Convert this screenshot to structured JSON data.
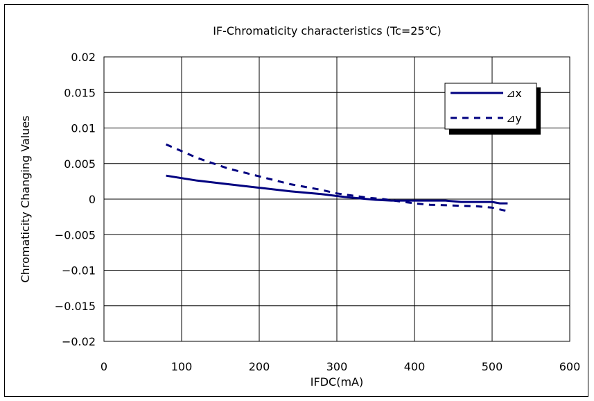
{
  "chart_data": {
    "type": "line",
    "title": "IF-Chromaticity characteristics (Tc=25℃)",
    "xlabel": "IFDC(mA)",
    "ylabel": "Chromaticity Changing Values",
    "xlim": [
      0,
      600
    ],
    "ylim": [
      -0.02,
      0.02
    ],
    "x_ticks": [
      "0",
      "100",
      "200",
      "300",
      "400",
      "500",
      "600"
    ],
    "y_ticks": [
      "0.02",
      "0.015",
      "0.01",
      "0.005",
      "0",
      "−0.005",
      "−0.01",
      "−0.015",
      "−0.02"
    ],
    "grid": true,
    "legend_position": "top-right",
    "series": [
      {
        "name": "⊿x",
        "style": "solid",
        "color": "#000080",
        "x": [
          80,
          120,
          160,
          200,
          240,
          280,
          310,
          330,
          350,
          370,
          400,
          440,
          460,
          480,
          500,
          510,
          520
        ],
        "y": [
          0.0033,
          0.0026,
          0.0021,
          0.0016,
          0.0011,
          0.0007,
          0.0003,
          0.0001,
          -0.0001,
          -0.0002,
          -0.0002,
          -0.0002,
          -0.0004,
          -0.0004,
          -0.0004,
          -0.0006,
          -0.0006
        ]
      },
      {
        "name": "⊿y",
        "style": "dashed",
        "color": "#000080",
        "x": [
          80,
          120,
          160,
          200,
          240,
          280,
          300,
          320,
          340,
          360,
          380,
          400,
          420,
          450,
          480,
          500,
          520
        ],
        "y": [
          0.0077,
          0.0058,
          0.0043,
          0.0032,
          0.0021,
          0.0013,
          0.0008,
          0.0005,
          0.0002,
          0.0,
          -0.0003,
          -0.0006,
          -0.0008,
          -0.0009,
          -0.001,
          -0.0012,
          -0.0017
        ]
      }
    ]
  }
}
